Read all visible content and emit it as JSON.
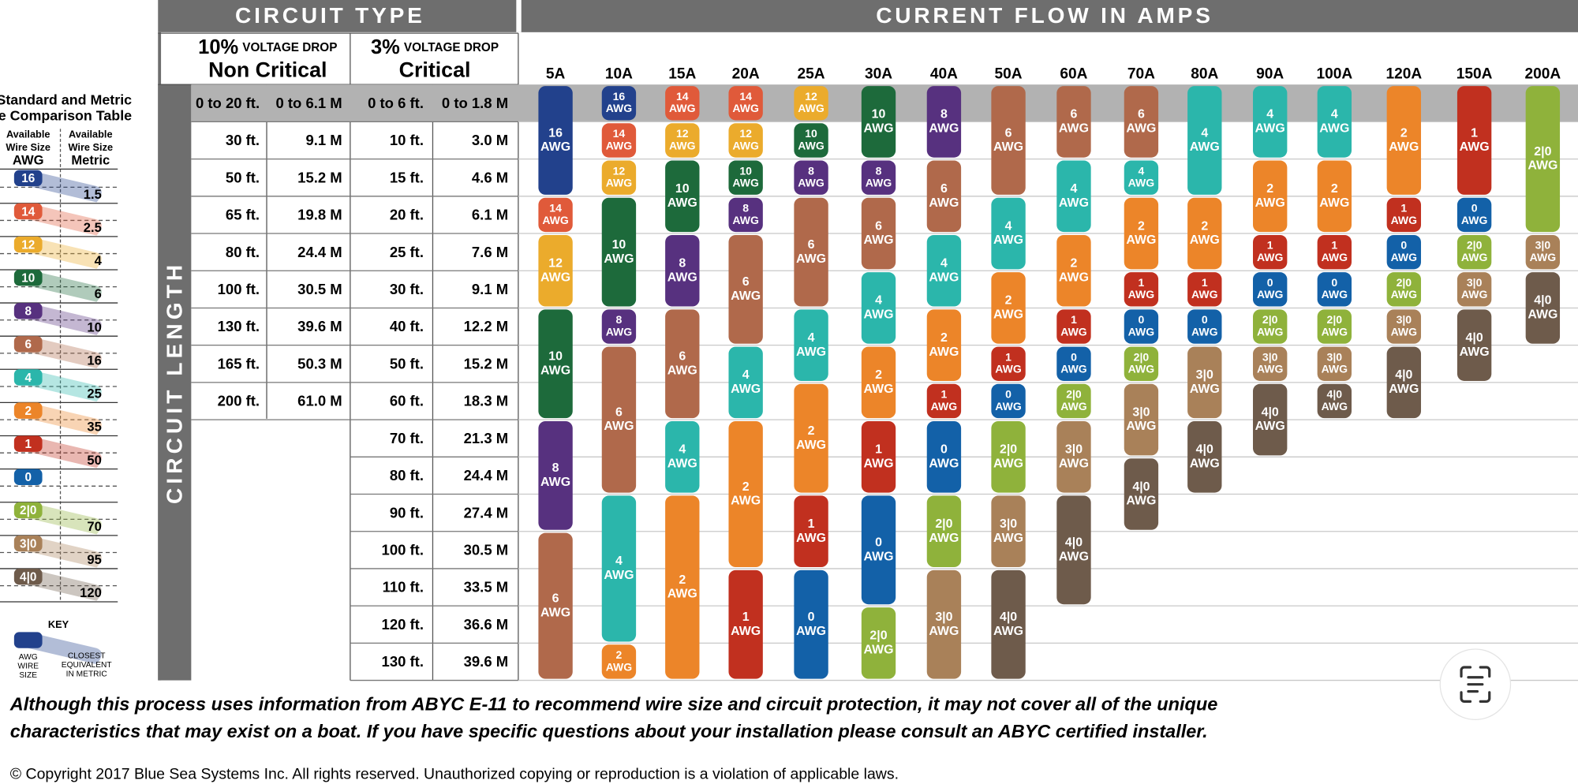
{
  "header": {
    "circuit_type": "CIRCUIT TYPE",
    "current_flow": "CURRENT FLOW IN AMPS",
    "side_label": "CIRCUIT LENGTH"
  },
  "non_critical": {
    "pct": "10%",
    "drop": "VOLTAGE DROP",
    "label": "Non Critical",
    "rows": [
      [
        "0 to 20 ft.",
        "0 to 6.1 M"
      ],
      [
        "30 ft.",
        "9.1 M"
      ],
      [
        "50 ft.",
        "15.2 M"
      ],
      [
        "65 ft.",
        "19.8 M"
      ],
      [
        "80 ft.",
        "24.4 M"
      ],
      [
        "100 ft.",
        "30.5 M"
      ],
      [
        "130 ft.",
        "39.6 M"
      ],
      [
        "165 ft.",
        "50.3 M"
      ],
      [
        "200 ft.",
        "61.0 M"
      ]
    ]
  },
  "critical": {
    "pct": "3%",
    "drop": "VOLTAGE DROP",
    "label": "Critical",
    "rows": [
      [
        "0 to 6 ft.",
        "0 to 1.8 M"
      ],
      [
        "10 ft.",
        "3.0 M"
      ],
      [
        "15 ft.",
        "4.6 M"
      ],
      [
        "20 ft.",
        "6.1 M"
      ],
      [
        "25 ft.",
        "7.6 M"
      ],
      [
        "30 ft.",
        "9.1 M"
      ],
      [
        "40 ft.",
        "12.2 M"
      ],
      [
        "50 ft.",
        "15.2 M"
      ],
      [
        "60 ft.",
        "18.3 M"
      ],
      [
        "70 ft.",
        "21.3 M"
      ],
      [
        "80 ft.",
        "24.4 M"
      ],
      [
        "90 ft.",
        "27.4 M"
      ],
      [
        "100 ft.",
        "30.5 M"
      ],
      [
        "110 ft.",
        "33.5 M"
      ],
      [
        "120 ft.",
        "36.6 M"
      ],
      [
        "130 ft.",
        "39.6 M"
      ]
    ]
  },
  "awg_unit": "AWG",
  "columns": [
    {
      "amps": "5A",
      "sizes": [
        "16",
        "16",
        "16",
        "14",
        "12",
        "12",
        "10",
        "10",
        "10",
        "8",
        "8",
        "8",
        "6",
        "6",
        "6",
        "6"
      ]
    },
    {
      "amps": "10A",
      "sizes": [
        "16",
        "14",
        "12",
        "10",
        "10",
        "10",
        "8",
        "6",
        "6",
        "6",
        "6",
        "4",
        "4",
        "4",
        "4",
        "2"
      ]
    },
    {
      "amps": "15A",
      "sizes": [
        "14",
        "12",
        "10",
        "10",
        "8",
        "8",
        "6",
        "6",
        "6",
        "4",
        "4",
        "2",
        "2",
        "2",
        "2",
        "2"
      ]
    },
    {
      "amps": "20A",
      "sizes": [
        "14",
        "12",
        "10",
        "8",
        "6",
        "6",
        "6",
        "4",
        "4",
        "2",
        "2",
        "2",
        "2",
        "1",
        "1",
        "1"
      ]
    },
    {
      "amps": "25A",
      "sizes": [
        "12",
        "10",
        "8",
        "6",
        "6",
        "6",
        "4",
        "4",
        "2",
        "2",
        "2",
        "1",
        "1",
        "0",
        "0",
        "0"
      ]
    },
    {
      "amps": "30A",
      "sizes": [
        "10",
        "10",
        "8",
        "6",
        "6",
        "4",
        "4",
        "2",
        "2",
        "1",
        "1",
        "0",
        "0",
        "0",
        "2|0",
        "2|0"
      ]
    },
    {
      "amps": "40A",
      "sizes": [
        "8",
        "8",
        "6",
        "6",
        "4",
        "4",
        "2",
        "2",
        "1",
        "0",
        "0",
        "2|0",
        "2|0",
        "3|0",
        "3|0",
        "3|0"
      ]
    },
    {
      "amps": "50A",
      "sizes": [
        "6",
        "6",
        "6",
        "4",
        "4",
        "2",
        "2",
        "1",
        "0",
        "2|0",
        "2|0",
        "3|0",
        "3|0",
        "4|0",
        "4|0",
        "4|0"
      ]
    },
    {
      "amps": "60A",
      "sizes": [
        "6",
        "6",
        "4",
        "4",
        "2",
        "2",
        "1",
        "0",
        "2|0",
        "3|0",
        "3|0",
        "4|0",
        "4|0",
        "4|0",
        null,
        null
      ]
    },
    {
      "amps": "70A",
      "sizes": [
        "6",
        "6",
        "4",
        "2",
        "2",
        "1",
        "0",
        "2|0",
        "3|0",
        "3|0",
        "4|0",
        "4|0",
        null,
        null,
        null,
        null
      ]
    },
    {
      "amps": "80A",
      "sizes": [
        "4",
        "4",
        "4",
        "2",
        "2",
        "1",
        "0",
        "3|0",
        "3|0",
        "4|0",
        "4|0",
        null,
        null,
        null,
        null,
        null
      ]
    },
    {
      "amps": "90A",
      "sizes": [
        "4",
        "4",
        "2",
        "2",
        "1",
        "0",
        "2|0",
        "3|0",
        "4|0",
        "4|0",
        null,
        null,
        null,
        null,
        null,
        null
      ]
    },
    {
      "amps": "100A",
      "sizes": [
        "4",
        "4",
        "2",
        "2",
        "1",
        "0",
        "2|0",
        "3|0",
        "4|0",
        null,
        null,
        null,
        null,
        null,
        null,
        null
      ]
    },
    {
      "amps": "120A",
      "sizes": [
        "2",
        "2",
        "2",
        "1",
        "0",
        "2|0",
        "3|0",
        "4|0",
        "4|0",
        null,
        null,
        null,
        null,
        null,
        null,
        null
      ]
    },
    {
      "amps": "150A",
      "sizes": [
        "1",
        "1",
        "1",
        "0",
        "2|0",
        "3|0",
        "4|0",
        "4|0",
        null,
        null,
        null,
        null,
        null,
        null,
        null,
        null
      ]
    },
    {
      "amps": "200A",
      "sizes": [
        "2|0",
        "2|0",
        "2|0",
        "2|0",
        "3|0",
        "4|0",
        "4|0",
        null,
        null,
        null,
        null,
        null,
        null,
        null,
        null,
        null
      ]
    }
  ],
  "comparison": {
    "title": [
      "Standard and Metric",
      "Wire Comparison Table"
    ],
    "awg_header": [
      "Available",
      "Wire Size",
      "AWG"
    ],
    "metric_header": [
      "Available",
      "Wire Size",
      "Metric"
    ],
    "sizes": [
      {
        "awg": "16",
        "metric": 1.5,
        "color": "#22418c"
      },
      {
        "awg": "14",
        "metric": 2.5,
        "color": "#e05a3a"
      },
      {
        "awg": "12",
        "metric": 4,
        "color": "#ebab2c"
      },
      {
        "awg": "10",
        "metric": 6,
        "color": "#1d6a3b"
      },
      {
        "awg": "8",
        "metric": 10,
        "color": "#57317f"
      },
      {
        "awg": "6",
        "metric": 16,
        "color": "#b0694b"
      },
      {
        "awg": "4",
        "metric": 25,
        "color": "#2bb6ab"
      },
      {
        "awg": "2",
        "metric": 35,
        "color": "#ec8529"
      },
      {
        "awg": "1",
        "metric": 50,
        "color": "#c1301f"
      },
      {
        "awg": "0",
        "metric": null,
        "color": "#1361a8"
      },
      {
        "awg": "2|0",
        "metric": 70,
        "color": "#8fb23b"
      },
      {
        "awg": "3|0",
        "metric": 95,
        "color": "#a98159"
      },
      {
        "awg": "4|0",
        "metric": 120,
        "color": "#6e5b4b"
      }
    ],
    "key": {
      "title": "KEY",
      "awg": [
        "AWG",
        "WIRE",
        "SIZE"
      ],
      "metric": [
        "CLOSEST",
        "EQUIVALENT",
        "IN METRIC"
      ]
    }
  },
  "footer": {
    "disclaimer": [
      "Although this process uses information from ABYC E-11 to recommend wire size and circuit protection, it may not cover all of the unique",
      "characteristics that may exist on a boat. If you have specific questions about your installation please consult an ABYC certified installer."
    ],
    "copyright": "© Copyright 2017 Blue Sea Systems Inc. All rights reserved. Unauthorized copying or reproduction is a violation of applicable laws."
  }
}
